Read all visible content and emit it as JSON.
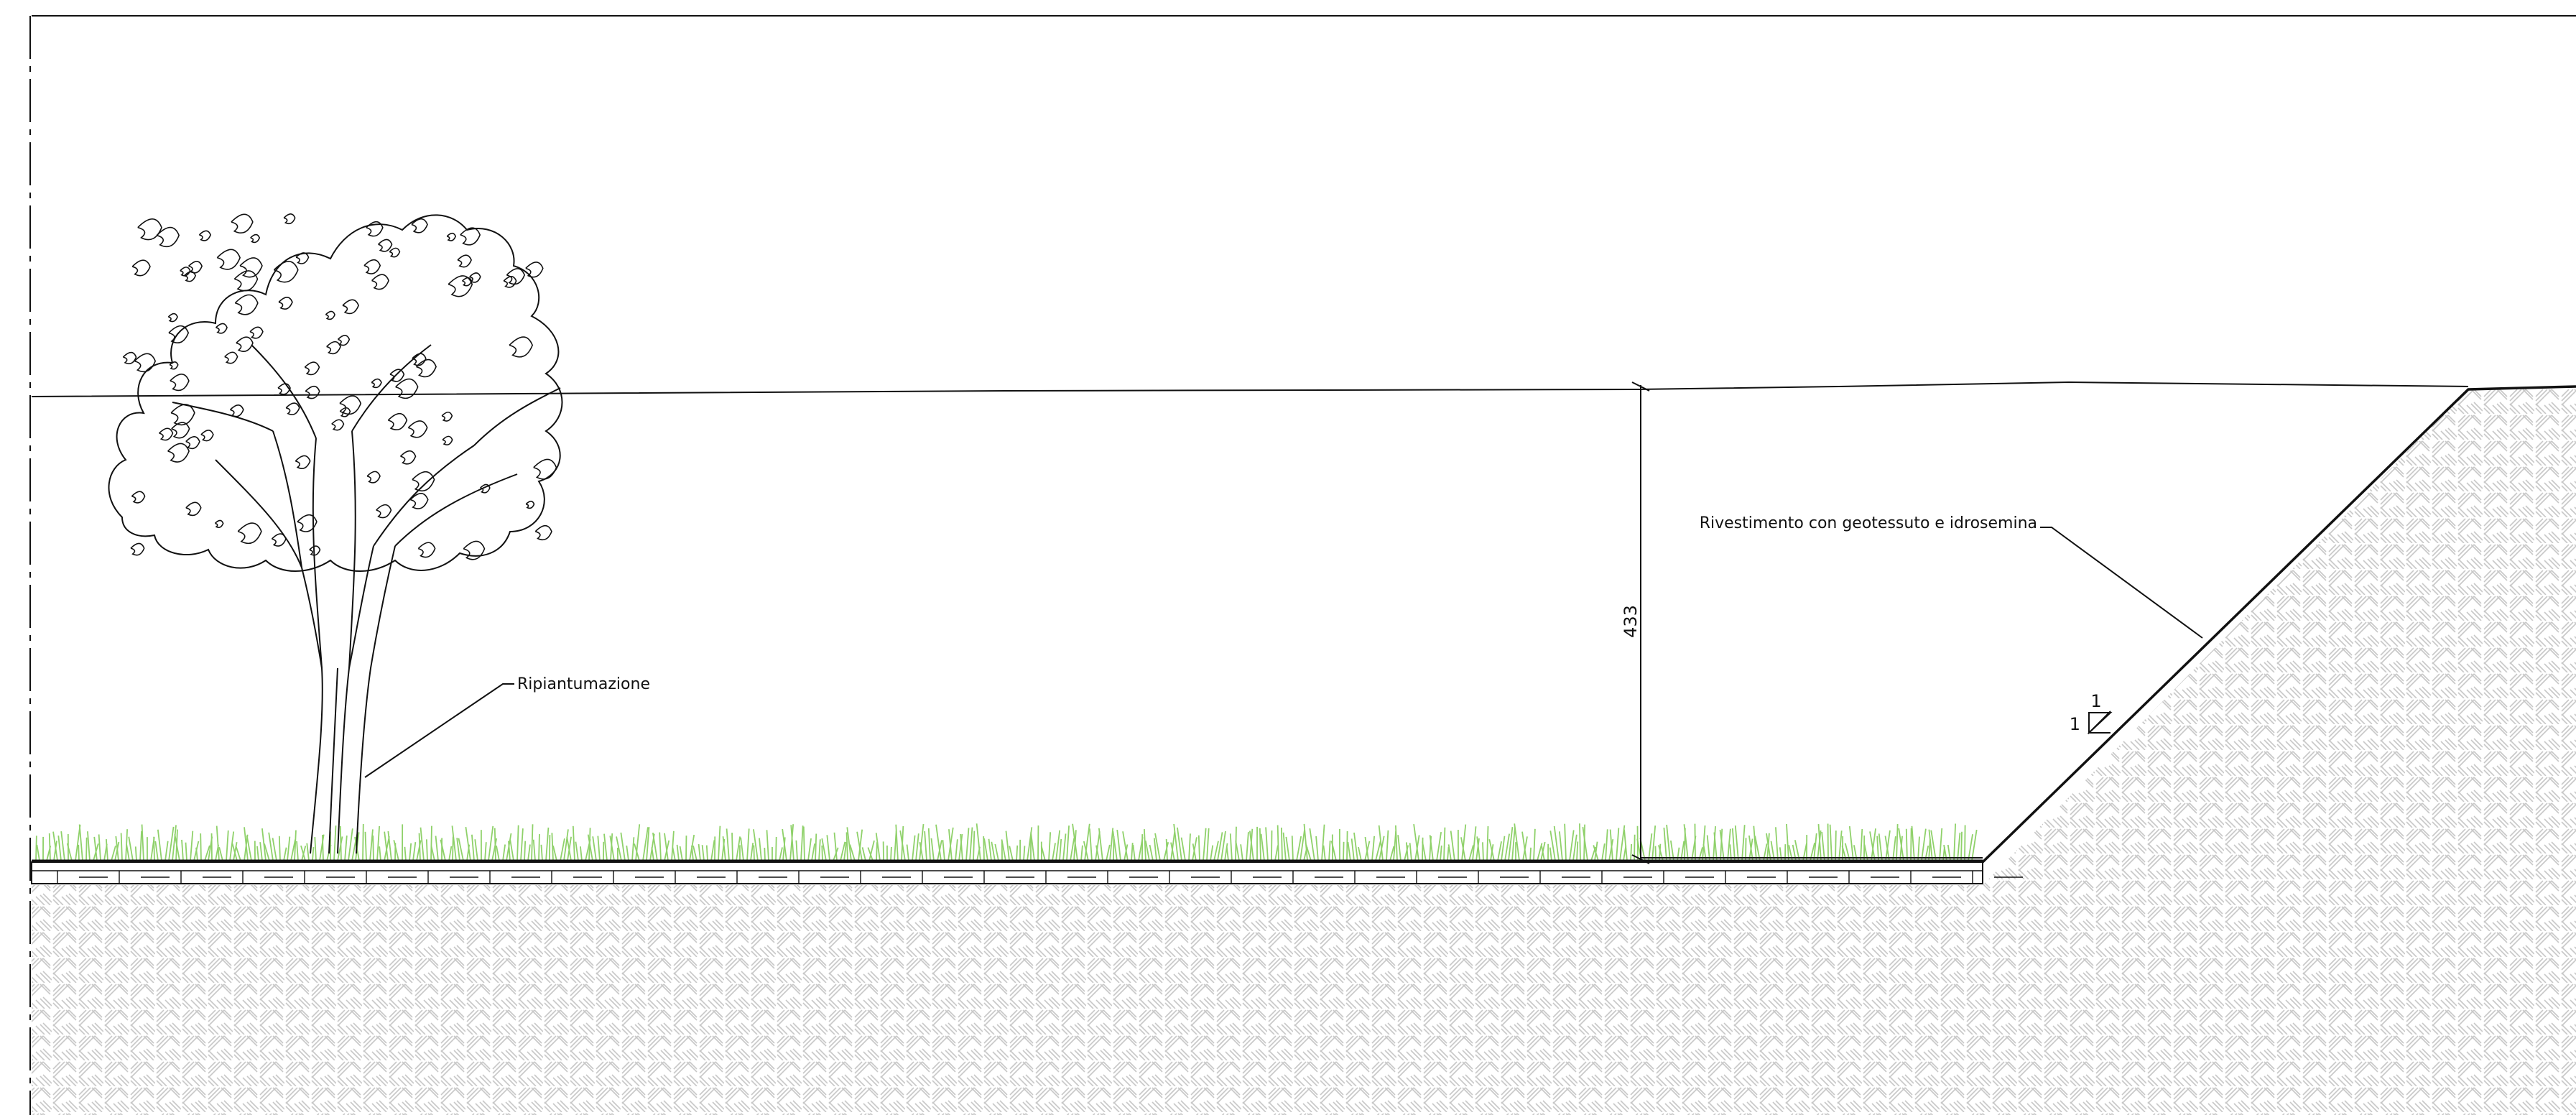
{
  "labels": {
    "ripiantumazione": "Ripiantumazione",
    "rivestimento": "Rivestimento con geotessuto e idrosemina",
    "dimension_value": "433",
    "slope_rise": "1",
    "slope_run": "1"
  },
  "colors": {
    "line": "#111111",
    "hatch": "#c8c8c8",
    "grass": "#8fd16a",
    "paper": "#ffffff"
  },
  "icons": {
    "tree": "tree-icon",
    "grass": "grass-icon",
    "slope_triangle": "slope-triangle-icon"
  }
}
